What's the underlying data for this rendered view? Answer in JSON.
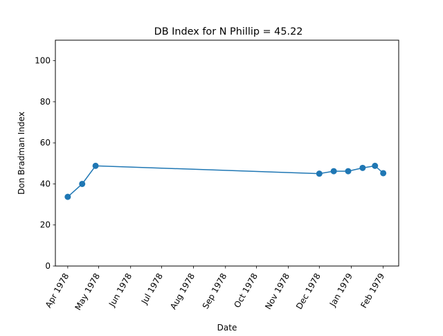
{
  "chart_data": {
    "type": "line",
    "title": "DB Index for N Phillip = 45.22",
    "xlabel": "Date",
    "ylabel": "Don Bradman Index",
    "x_ticks": [
      {
        "date": "1978-04-01",
        "label": "Apr 1978"
      },
      {
        "date": "1978-05-01",
        "label": "May 1978"
      },
      {
        "date": "1978-06-01",
        "label": "Jun 1978"
      },
      {
        "date": "1978-07-01",
        "label": "Jul 1978"
      },
      {
        "date": "1978-08-01",
        "label": "Aug 1978"
      },
      {
        "date": "1978-09-01",
        "label": "Sep 1978"
      },
      {
        "date": "1978-10-01",
        "label": "Oct 1978"
      },
      {
        "date": "1978-11-01",
        "label": "Nov 1978"
      },
      {
        "date": "1978-12-01",
        "label": "Dec 1978"
      },
      {
        "date": "1979-01-01",
        "label": "Jan 1979"
      },
      {
        "date": "1979-02-01",
        "label": "Feb 1979"
      }
    ],
    "y_ticks": [
      0,
      20,
      40,
      60,
      80,
      100
    ],
    "xlim": [
      "1978-03-20",
      "1979-02-16"
    ],
    "ylim": [
      0,
      110
    ],
    "grid": false,
    "series": [
      {
        "color": "#1f77b4",
        "points": [
          {
            "x": "1978-04-01",
            "y": 33.7
          },
          {
            "x": "1978-04-15",
            "y": 40.0
          },
          {
            "x": "1978-04-28",
            "y": 48.8
          },
          {
            "x": "1978-12-01",
            "y": 45.0
          },
          {
            "x": "1978-12-15",
            "y": 46.2
          },
          {
            "x": "1978-12-29",
            "y": 46.2
          },
          {
            "x": "1979-01-12",
            "y": 47.8
          },
          {
            "x": "1979-01-24",
            "y": 48.8
          },
          {
            "x": "1979-02-01",
            "y": 45.22
          }
        ]
      }
    ]
  }
}
